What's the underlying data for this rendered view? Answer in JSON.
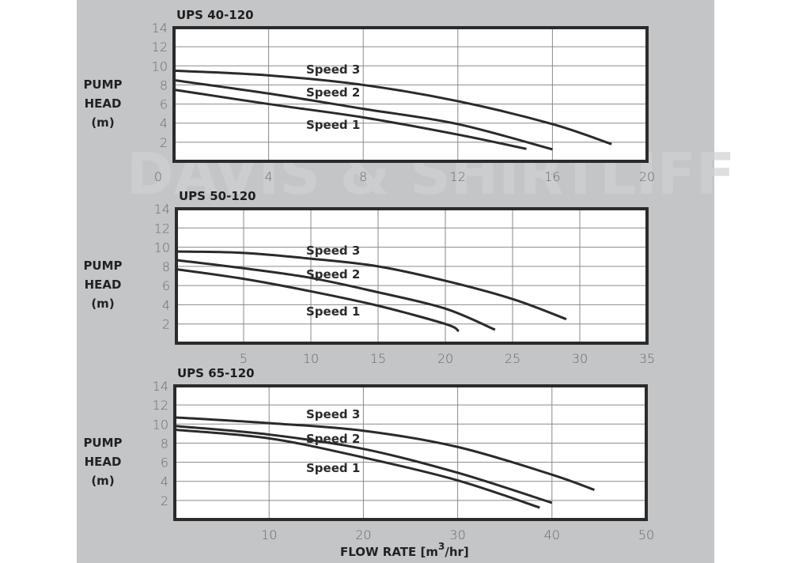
{
  "watermark": "DAVIS & SHIRTLIFF",
  "colors": {
    "background": "#c4c5c7",
    "plot": "#ffffff",
    "curve": "#2a2a2a",
    "grid": "#8a8a8a"
  },
  "x_axis_label": {
    "text": "FLOW RATE [m",
    "sup": "3",
    "tail": "/hr]"
  },
  "chart_data": [
    {
      "type": "line",
      "title": "UPS 40-120",
      "ylabel": [
        "PUMP",
        "HEAD",
        "(m)"
      ],
      "xlim": [
        0,
        20
      ],
      "ylim": [
        0,
        14
      ],
      "grid": true,
      "xticks": [
        0,
        4,
        8,
        12,
        16,
        20
      ],
      "yticks": [
        2,
        4,
        6,
        8,
        10,
        12,
        14
      ],
      "series": [
        {
          "name": "Speed 3",
          "x": [
            0,
            4,
            8,
            12,
            16,
            18.5
          ],
          "y": [
            9.5,
            9.0,
            8.0,
            6.3,
            3.9,
            1.8
          ]
        },
        {
          "name": "Speed 2",
          "x": [
            0,
            4,
            8,
            12,
            16.0
          ],
          "y": [
            8.5,
            7.1,
            5.5,
            3.9,
            1.25
          ]
        },
        {
          "name": "Speed 1",
          "x": [
            0,
            4,
            8,
            12,
            14.9
          ],
          "y": [
            7.5,
            6.0,
            4.6,
            2.8,
            1.3
          ]
        }
      ]
    },
    {
      "type": "line",
      "title": "UPS 50-120",
      "ylabel": [
        "PUMP",
        "HEAD",
        "(m)"
      ],
      "xlim": [
        0,
        35
      ],
      "ylim": [
        0,
        14
      ],
      "grid": true,
      "xticks": [
        5,
        10,
        15,
        20,
        25,
        30,
        35
      ],
      "yticks": [
        2,
        4,
        6,
        8,
        10,
        12,
        14
      ],
      "series": [
        {
          "name": "Speed 3",
          "x": [
            0,
            5,
            10,
            15,
            20,
            25,
            29.0
          ],
          "y": [
            9.55,
            9.4,
            8.8,
            8.0,
            6.5,
            4.6,
            2.5
          ]
        },
        {
          "name": "Speed 2",
          "x": [
            0,
            5,
            10,
            15,
            20,
            23.7
          ],
          "y": [
            8.65,
            7.8,
            6.8,
            5.3,
            3.6,
            1.4
          ]
        },
        {
          "name": "Speed 1",
          "x": [
            0,
            5,
            10,
            15,
            20,
            21.0
          ],
          "y": [
            7.7,
            6.7,
            5.4,
            3.9,
            2.0,
            1.25
          ]
        }
      ]
    },
    {
      "type": "line",
      "title": "UPS 65-120",
      "ylabel": [
        "PUMP",
        "HEAD",
        "(m)"
      ],
      "xlim": [
        0,
        50
      ],
      "ylim": [
        0,
        14
      ],
      "grid": true,
      "xticks": [
        10,
        20,
        30,
        40,
        50
      ],
      "yticks": [
        2,
        4,
        6,
        8,
        10,
        12,
        14
      ],
      "series": [
        {
          "name": "Speed 3",
          "x": [
            0,
            10,
            20,
            30,
            40,
            44.5
          ],
          "y": [
            10.7,
            10.1,
            9.3,
            7.6,
            4.7,
            3.1
          ]
        },
        {
          "name": "Speed 2",
          "x": [
            0,
            10,
            20,
            30,
            40.0
          ],
          "y": [
            9.8,
            8.9,
            7.4,
            4.9,
            1.75
          ]
        },
        {
          "name": "Speed 1",
          "x": [
            0,
            10,
            20,
            30,
            38.7
          ],
          "y": [
            9.4,
            8.5,
            6.5,
            4.1,
            1.25
          ]
        }
      ]
    }
  ]
}
